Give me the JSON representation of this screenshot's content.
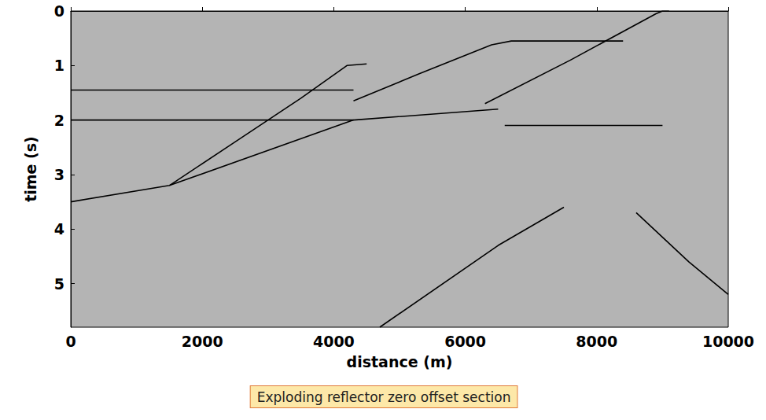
{
  "chart_data": {
    "type": "line",
    "x_label": "distance (m)",
    "y_label": "time (s)",
    "annotation": "Exploding reflector zero offset section",
    "xlim": [
      0,
      10000
    ],
    "ylim": [
      0,
      5.8
    ],
    "xticks": [
      0,
      2000,
      4000,
      6000,
      8000,
      10000
    ],
    "yticks": [
      0,
      1,
      2,
      3,
      4,
      5
    ],
    "grid": false,
    "series": [
      {
        "color": "#000000",
        "x": [
          1500,
          2500,
          3500,
          4200,
          4500
        ],
        "values": [
          3.2,
          2.4,
          1.6,
          1.0,
          0.97
        ]
      },
      {
        "color": "#000000",
        "x": [
          4300,
          5300,
          6400,
          6700,
          8400
        ],
        "values": [
          1.65,
          1.15,
          0.62,
          0.55,
          0.55
        ]
      },
      {
        "color": "#000000",
        "x": [
          6300,
          7600,
          8900,
          9000,
          9100
        ],
        "values": [
          1.7,
          0.9,
          0.05,
          0.0,
          0.0
        ]
      },
      {
        "color": "#000000",
        "x": [
          0,
          1500,
          4300,
          6500
        ],
        "values": [
          3.5,
          3.2,
          2.0,
          1.8
        ]
      },
      {
        "color": "#000000",
        "x": [
          0,
          4300
        ],
        "values": [
          1.45,
          1.45
        ]
      },
      {
        "color": "#000000",
        "x": [
          0,
          4300
        ],
        "values": [
          2.0,
          2.0
        ]
      },
      {
        "color": "#000000",
        "x": [
          6600,
          9000
        ],
        "values": [
          2.1,
          2.1
        ]
      },
      {
        "color": "#000000",
        "x": [
          4700,
          6500,
          7500
        ],
        "values": [
          5.8,
          4.3,
          3.6
        ]
      },
      {
        "color": "#000000",
        "x": [
          8600,
          9400,
          10000
        ],
        "values": [
          3.7,
          4.6,
          5.2
        ]
      }
    ]
  }
}
